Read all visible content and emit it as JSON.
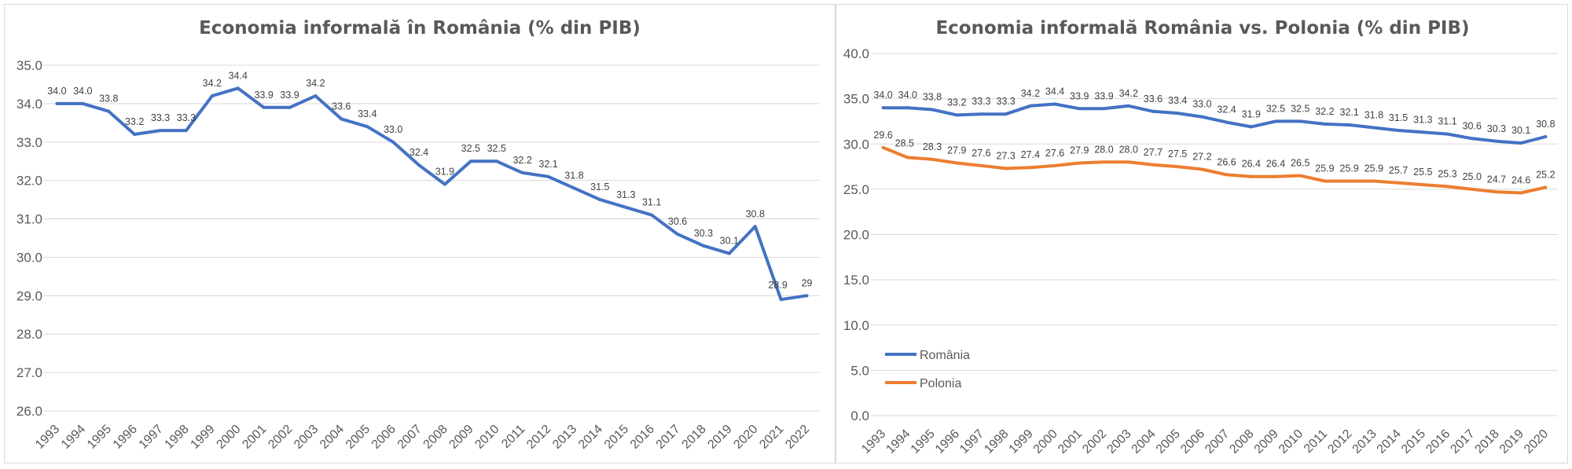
{
  "chart_data": [
    {
      "type": "line",
      "title": "Economia informală în România (% din PIB)",
      "x": [
        1993,
        1994,
        1995,
        1996,
        1997,
        1998,
        1999,
        2000,
        2001,
        2002,
        2003,
        2004,
        2005,
        2006,
        2007,
        2008,
        2009,
        2010,
        2011,
        2012,
        2013,
        2014,
        2015,
        2016,
        2017,
        2018,
        2019,
        2020,
        2021,
        2022
      ],
      "series": [
        {
          "values": [
            34.0,
            34.0,
            33.8,
            33.2,
            33.3,
            33.3,
            34.2,
            34.4,
            33.9,
            33.9,
            34.2,
            33.6,
            33.4,
            33.0,
            32.4,
            31.9,
            32.5,
            32.5,
            32.2,
            32.1,
            31.8,
            31.5,
            31.3,
            31.1,
            30.6,
            30.3,
            30.1,
            30.8,
            28.9,
            29
          ],
          "labels": [
            "34.0",
            "34.0",
            "33.8",
            "33.2",
            "33.3",
            "33.3",
            "34.2",
            "34.4",
            "33.9",
            "33.9",
            "34.2",
            "33.6",
            "33.4",
            "33.0",
            "32.4",
            "31.9",
            "32.5",
            "32.5",
            "32.2",
            "32.1",
            "31.8",
            "31.5",
            "31.3",
            "31.1",
            "30.6",
            "30.3",
            "30.1",
            "30.8",
            "28.9",
            "29"
          ],
          "color": "#4472c4"
        }
      ],
      "yticks": [
        "26.0",
        "27.0",
        "28.0",
        "29.0",
        "30.0",
        "31.0",
        "32.0",
        "33.0",
        "34.0",
        "35.0"
      ],
      "ylim": [
        26,
        35
      ],
      "grid": true
    },
    {
      "type": "line",
      "title": "Economia informală România vs. Polonia (% din PIB)",
      "x": [
        1993,
        1994,
        1995,
        1996,
        1997,
        1998,
        1999,
        2000,
        2001,
        2002,
        2003,
        2004,
        2005,
        2006,
        2007,
        2008,
        2009,
        2010,
        2011,
        2012,
        2013,
        2014,
        2015,
        2016,
        2017,
        2018,
        2019,
        2020
      ],
      "series": [
        {
          "name": "România",
          "values": [
            34.0,
            34.0,
            33.8,
            33.2,
            33.3,
            33.3,
            34.2,
            34.4,
            33.9,
            33.9,
            34.2,
            33.6,
            33.4,
            33.0,
            32.4,
            31.9,
            32.5,
            32.5,
            32.2,
            32.1,
            31.8,
            31.5,
            31.3,
            31.1,
            30.6,
            30.3,
            30.1,
            30.8
          ],
          "labels": [
            "34.0",
            "34.0",
            "33.8",
            "33.2",
            "33.3",
            "33.3",
            "34.2",
            "34.4",
            "33.9",
            "33.9",
            "34.2",
            "33.6",
            "33.4",
            "33.0",
            "32.4",
            "31.9",
            "32.5",
            "32.5",
            "32.2",
            "32.1",
            "31.8",
            "31.5",
            "31.3",
            "31.1",
            "30.6",
            "30.3",
            "30.1",
            "30.8"
          ],
          "color": "#4472c4"
        },
        {
          "name": "Polonia",
          "values": [
            29.6,
            28.5,
            28.3,
            27.9,
            27.6,
            27.3,
            27.4,
            27.6,
            27.9,
            28.0,
            28.0,
            27.7,
            27.5,
            27.2,
            26.6,
            26.4,
            26.4,
            26.5,
            25.9,
            25.9,
            25.9,
            25.7,
            25.5,
            25.3,
            25.0,
            24.7,
            24.6,
            25.2
          ],
          "labels": [
            "29.6",
            "28.5",
            "28.3",
            "27.9",
            "27.6",
            "27.3",
            "27.4",
            "27.6",
            "27.9",
            "28.0",
            "28.0",
            "27.7",
            "27.5",
            "27.2",
            "26.6",
            "26.4",
            "26.4",
            "26.5",
            "25.9",
            "25.9",
            "25.9",
            "25.7",
            "25.5",
            "25.3",
            "25.0",
            "24.7",
            "24.6",
            "25.2"
          ],
          "color": "#ed7d31"
        }
      ],
      "yticks": [
        "0.0",
        "5.0",
        "10.0",
        "15.0",
        "20.0",
        "25.0",
        "30.0",
        "35.0",
        "40.0"
      ],
      "ylim": [
        0,
        40
      ],
      "grid": true,
      "legend": "left"
    }
  ]
}
